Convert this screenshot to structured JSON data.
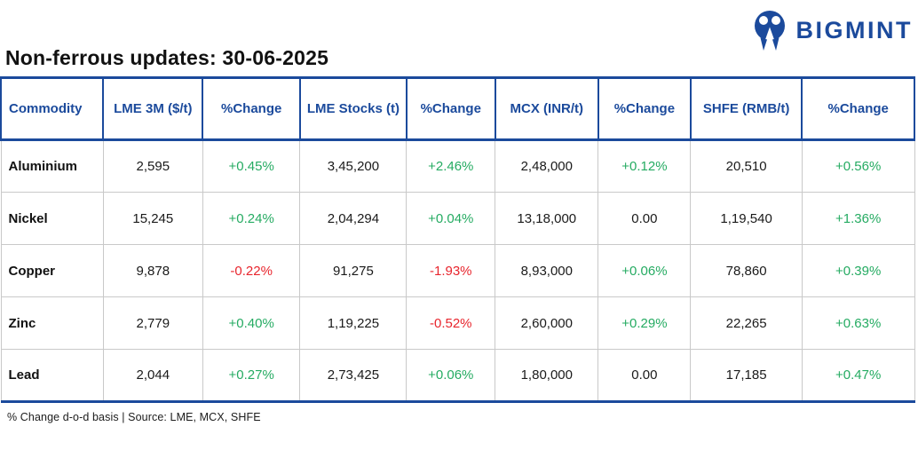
{
  "brand": {
    "name": "BIGMINT"
  },
  "title": "Non-ferrous updates: 30-06-2025",
  "chart_data": {
    "type": "table",
    "title": "Non-ferrous updates: 30-06-2025",
    "columns": [
      "Commodity",
      "LME 3M ($/t)",
      "%Change",
      "LME Stocks (t)",
      "%Change",
      "MCX (INR/t)",
      "%Change",
      "SHFE (RMB/t)",
      "%Change"
    ],
    "rows": [
      [
        "Aluminium",
        "2,595",
        "+0.45%",
        "3,45,200",
        "+2.46%",
        "2,48,000",
        "+0.12%",
        "20,510",
        "+0.56%"
      ],
      [
        "Nickel",
        "15,245",
        "+0.24%",
        "2,04,294",
        "+0.04%",
        "13,18,000",
        "0.00",
        "1,19,540",
        "+1.36%"
      ],
      [
        "Copper",
        "9,878",
        "-0.22%",
        "91,275",
        "-1.93%",
        "8,93,000",
        "+0.06%",
        "78,860",
        "+0.39%"
      ],
      [
        "Zinc",
        "2,779",
        "+0.40%",
        "1,19,225",
        "-0.52%",
        "2,60,000",
        "+0.29%",
        "22,265",
        "+0.63%"
      ],
      [
        "Lead",
        "2,044",
        "+0.27%",
        "2,73,425",
        "+0.06%",
        "1,80,000",
        "0.00",
        "17,185",
        "+0.47%"
      ]
    ]
  },
  "footnote": "% Change d-o-d basis | Source: LME, MCX, SHFE",
  "colors": {
    "accent_blue": "#1b4a9c",
    "positive_green": "#25ab62",
    "negative_red": "#e8252d",
    "grid_gray": "#c9c9c9"
  }
}
